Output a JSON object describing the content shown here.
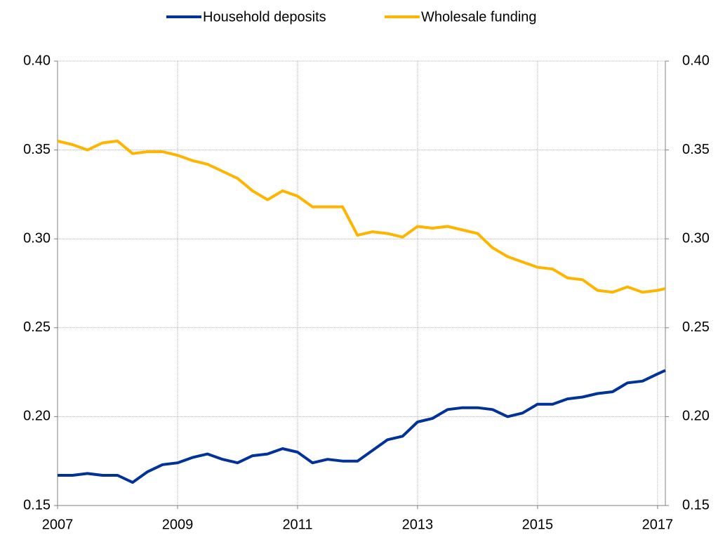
{
  "chart_data": {
    "type": "line",
    "x": [
      2007,
      2007.25,
      2007.5,
      2007.75,
      2008,
      2008.25,
      2008.5,
      2008.75,
      2009,
      2009.25,
      2009.5,
      2009.75,
      2010,
      2010.25,
      2010.5,
      2010.75,
      2011,
      2011.25,
      2011.5,
      2011.75,
      2012,
      2012.25,
      2012.5,
      2012.75,
      2013,
      2013.25,
      2013.5,
      2013.75,
      2014,
      2014.25,
      2014.5,
      2014.75,
      2015,
      2015.25,
      2015.5,
      2015.75,
      2016,
      2016.25,
      2016.5,
      2016.75,
      2017,
      2017.13
    ],
    "series": [
      {
        "name": "Household deposits",
        "color": "#003299",
        "values": [
          0.167,
          0.167,
          0.168,
          0.167,
          0.167,
          0.163,
          0.169,
          0.173,
          0.174,
          0.177,
          0.179,
          0.176,
          0.174,
          0.178,
          0.179,
          0.182,
          0.18,
          0.174,
          0.176,
          0.175,
          0.175,
          0.181,
          0.187,
          0.189,
          0.197,
          0.199,
          0.204,
          0.205,
          0.205,
          0.204,
          0.2,
          0.202,
          0.207,
          0.207,
          0.21,
          0.211,
          0.213,
          0.214,
          0.219,
          0.22,
          0.224,
          0.226
        ]
      },
      {
        "name": "Wholesale funding",
        "color": "#ffb400",
        "values": [
          0.355,
          0.353,
          0.35,
          0.354,
          0.355,
          0.348,
          0.349,
          0.349,
          0.347,
          0.344,
          0.342,
          0.338,
          0.334,
          0.327,
          0.322,
          0.327,
          0.324,
          0.318,
          0.318,
          0.318,
          0.302,
          0.304,
          0.303,
          0.301,
          0.307,
          0.306,
          0.307,
          0.305,
          0.303,
          0.295,
          0.29,
          0.287,
          0.284,
          0.283,
          0.278,
          0.277,
          0.271,
          0.27,
          0.273,
          0.27,
          0.271,
          0.272
        ]
      }
    ],
    "xlim": [
      2007,
      2017.13
    ],
    "xticks": [
      2007,
      2009,
      2011,
      2013,
      2015,
      2017
    ],
    "ylim": [
      0.15,
      0.4
    ],
    "yticks": [
      {
        "value": 0.15,
        "label": "0.15"
      },
      {
        "value": 0.2,
        "label": "0.20"
      },
      {
        "value": 0.25,
        "label": "0.25"
      },
      {
        "value": 0.3,
        "label": "0.30"
      },
      {
        "value": 0.35,
        "label": "0.35"
      },
      {
        "value": 0.4,
        "label": "0.40"
      }
    ],
    "y2lim": [
      0.15,
      0.4
    ],
    "y2ticks": [
      {
        "value": 0.15,
        "label": "0.15"
      },
      {
        "value": 0.2,
        "label": "0.20"
      },
      {
        "value": 0.25,
        "label": "0.25"
      },
      {
        "value": 0.3,
        "label": "0.30"
      },
      {
        "value": 0.35,
        "label": "0.35"
      },
      {
        "value": 0.4,
        "label": "0.40"
      }
    ],
    "grid": true,
    "legend": "top"
  }
}
